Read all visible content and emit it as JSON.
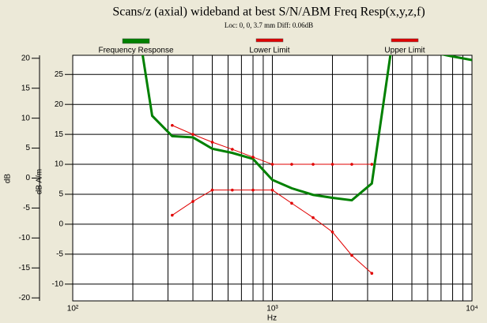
{
  "chart_data": {
    "type": "line",
    "title": "Scans/z (axial) wideband at best S/N/ABM Freq Resp(x,y,z,f)",
    "subtitle": "Loc: 0, 0, 3.7 mm Diff: 0.06dB",
    "xlabel": "Hz",
    "ylabel": "dB",
    "y2label": "dB A/m",
    "xscale": "log",
    "xlim": [
      100,
      10000
    ],
    "xticks": [
      {
        "value": 100,
        "label": "10²"
      },
      {
        "value": 1000,
        "label": "10³"
      },
      {
        "value": 10000,
        "label": "10⁴"
      }
    ],
    "ylim": [
      -20.5,
      20.5
    ],
    "yticks": [
      -20,
      -15,
      -10,
      -5,
      0,
      5,
      10,
      15,
      20
    ],
    "y2lim": [
      -12.8,
      28.2
    ],
    "y2ticks": [
      -10,
      -5,
      0,
      5,
      10,
      15,
      20,
      25
    ],
    "grid": true,
    "legend": "top",
    "series": [
      {
        "name": "Frequency Response",
        "color": "#008000",
        "x": [
          200,
          250,
          315,
          400,
          500,
          630,
          800,
          1000,
          1250,
          1600,
          2000,
          2500,
          3150,
          4000,
          5000,
          6300,
          8000,
          10000
        ],
        "values": [
          31,
          10.4,
          7.0,
          6.8,
          4.9,
          4.2,
          3.2,
          -0.3,
          -1.7,
          -2.8,
          -3.3,
          -3.7,
          -0.9,
          23,
          24,
          21,
          20.3,
          19.7
        ]
      },
      {
        "name": "Lower Limit",
        "color": "#e00000",
        "x": [
          315,
          400,
          500,
          630,
          800,
          1000,
          1250,
          1600,
          2000,
          2500,
          3150
        ],
        "values": [
          -6.2,
          -3.9,
          -2.0,
          -2.0,
          -2.0,
          -2.0,
          -4.2,
          -6.6,
          -9.0,
          -12.9,
          -15.9
        ]
      },
      {
        "name": "Upper Limit",
        "color": "#e00000",
        "x": [
          315,
          400,
          500,
          630,
          800,
          1000,
          1250,
          1600,
          2000,
          2500,
          3150
        ],
        "values": [
          8.8,
          7.3,
          6.0,
          4.8,
          3.5,
          2.3,
          2.3,
          2.3,
          2.3,
          2.3,
          2.3
        ]
      }
    ]
  }
}
